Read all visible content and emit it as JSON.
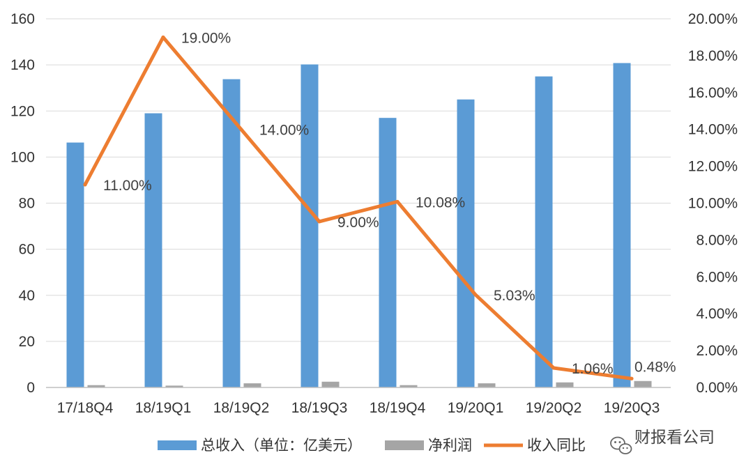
{
  "chart_data": {
    "type": "bar",
    "categories": [
      "17/18Q4",
      "18/19Q1",
      "18/19Q2",
      "18/19Q3",
      "18/19Q4",
      "19/20Q1",
      "19/20Q2",
      "19/20Q3"
    ],
    "series": [
      {
        "name": "总收入（单位：亿美元）",
        "type": "bar",
        "axis": "left",
        "color": "#5b9bd5",
        "values": [
          106.3,
          119.0,
          133.8,
          140.2,
          117.0,
          125.0,
          135.0,
          140.8
        ]
      },
      {
        "name": "净利润",
        "type": "bar",
        "axis": "left",
        "color": "#a5a5a5",
        "values": [
          1.0,
          0.8,
          1.8,
          2.5,
          1.0,
          1.8,
          2.2,
          2.8
        ]
      },
      {
        "name": "收入同比",
        "type": "line",
        "axis": "right",
        "color": "#ed7d31",
        "values": [
          11.0,
          19.0,
          14.0,
          9.0,
          10.08,
          5.03,
          1.06,
          0.48
        ],
        "labels": [
          "11.00%",
          "19.00%",
          "14.00%",
          "9.00%",
          "10.08%",
          "5.03%",
          "1.06%",
          "0.48%"
        ]
      }
    ],
    "y_left": {
      "min": 0,
      "max": 160,
      "step": 20,
      "ticks": [
        "0",
        "20",
        "40",
        "60",
        "80",
        "100",
        "120",
        "140",
        "160"
      ]
    },
    "y_right": {
      "min": 0,
      "max": 20,
      "step": 2,
      "ticks": [
        "0.00%",
        "2.00%",
        "4.00%",
        "6.00%",
        "8.00%",
        "10.00%",
        "12.00%",
        "14.00%",
        "16.00%",
        "18.00%",
        "20.00%"
      ]
    },
    "grid": true,
    "legend_position": "bottom"
  },
  "watermark": {
    "text": "财报看公司",
    "icon": "wechat-icon"
  }
}
